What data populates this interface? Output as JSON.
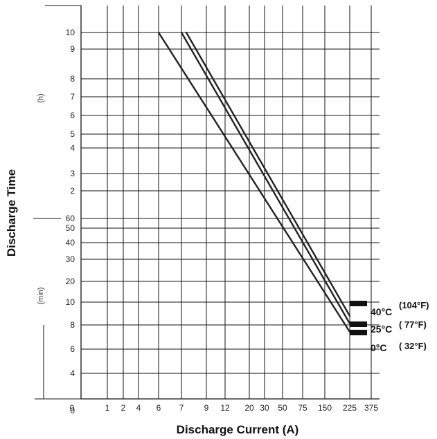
{
  "chart_data": {
    "type": "line",
    "title": "",
    "xlabel": "Discharge Current (A)",
    "ylabel": "Discharge Time",
    "x_ticks": [
      "0",
      "1",
      "2",
      "4",
      "6",
      "7",
      "9",
      "12",
      "20",
      "30",
      "50",
      "75",
      "150",
      "225",
      "375"
    ],
    "y_ticks_hours": [
      "10",
      "9",
      "8",
      "7",
      "6",
      "5",
      "4",
      "3",
      "2"
    ],
    "y_ticks_minutes": [
      "60",
      "50",
      "40",
      "30",
      "20",
      "10",
      "8",
      "6",
      "4",
      "0"
    ],
    "y_unit_hours": "(h)",
    "y_unit_minutes": "(min)",
    "grid": true,
    "legend": "right",
    "series": [
      {
        "name": "40°C",
        "name_f": "(104°F)",
        "points": [
          [
            7.3,
            "10 h"
          ],
          [
            225,
            "10 min"
          ]
        ]
      },
      {
        "name": "25°C",
        "name_f": "( 77°F)",
        "points": [
          [
            7,
            "10 h"
          ],
          [
            225,
            "8 min"
          ]
        ]
      },
      {
        "name": "0°C",
        "name_f": "( 32°F)",
        "points": [
          [
            6,
            "10 h"
          ],
          [
            225,
            "6 min"
          ]
        ]
      }
    ]
  },
  "colors": {
    "line": "#222222",
    "grid": "#111111",
    "marker": "#111111"
  }
}
